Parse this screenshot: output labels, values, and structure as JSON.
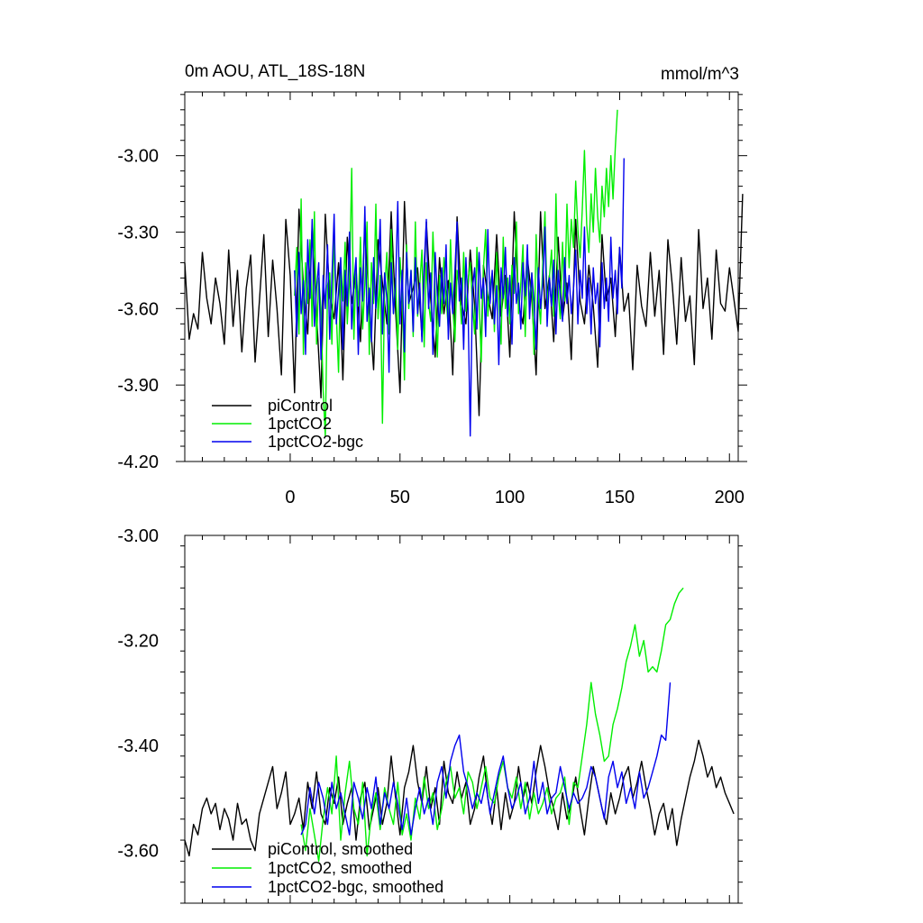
{
  "chart_data": [
    {
      "type": "line",
      "title": "0m AOU, ATL_18S-18N",
      "units": "mmol/m^3",
      "xlim": [
        -48,
        204
      ],
      "ylim": [
        -4.2,
        -2.75
      ],
      "x_ticks": [
        0,
        50,
        100,
        150,
        200
      ],
      "x_tick_labels": [
        "0",
        "50",
        "100",
        "150",
        "200"
      ],
      "y_ticks": [
        -4.2,
        -3.9,
        -3.6,
        -3.3,
        -3.0
      ],
      "y_tick_labels": [
        "-4.20",
        "-3.90",
        "-3.60",
        "-3.30",
        "-3.00"
      ],
      "legend_position": "bottom-left",
      "series": [
        {
          "name": "piControl",
          "color": "#000000",
          "x_start": -48,
          "x_step": 2,
          "values": [
            -3.42,
            -3.72,
            -3.62,
            -3.68,
            -3.38,
            -3.56,
            -3.66,
            -3.48,
            -3.58,
            -3.74,
            -3.37,
            -3.67,
            -3.45,
            -3.77,
            -3.52,
            -3.39,
            -3.81,
            -3.57,
            -3.31,
            -3.71,
            -3.41,
            -3.6,
            -3.86,
            -3.25,
            -3.47,
            -3.93,
            -3.21,
            -3.51,
            -3.7,
            -3.28,
            -3.62,
            -3.95,
            -3.23,
            -3.55,
            -3.64,
            -3.42,
            -3.88,
            -3.32,
            -3.58,
            -3.46,
            -3.73,
            -3.27,
            -3.59,
            -3.84,
            -3.33,
            -3.5,
            -3.66,
            -3.22,
            -3.61,
            -3.93,
            -3.18,
            -3.58,
            -3.52,
            -3.44,
            -3.71,
            -3.26,
            -3.57,
            -3.79,
            -3.4,
            -3.62,
            -3.49,
            -3.86,
            -3.24,
            -3.58,
            -3.66,
            -3.37,
            -3.59,
            -4.02,
            -3.43,
            -3.55,
            -3.64,
            -3.31,
            -3.63,
            -3.47,
            -3.79,
            -3.22,
            -3.58,
            -3.66,
            -3.4,
            -3.56,
            -3.86,
            -3.22,
            -3.6,
            -3.47,
            -3.73,
            -3.32,
            -3.64,
            -3.5,
            -3.8,
            -3.25,
            -3.57,
            -3.66,
            -3.43,
            -3.59,
            -3.83,
            -3.31,
            -3.57,
            -3.48,
            -3.71,
            -3.36,
            -3.61,
            -3.54,
            -3.84,
            -3.43,
            -3.59,
            -3.67,
            -3.38,
            -3.63,
            -3.45,
            -3.78,
            -3.33,
            -3.51,
            -3.74,
            -3.4,
            -3.65,
            -3.55,
            -3.82,
            -3.29,
            -3.6,
            -3.48,
            -3.72,
            -3.37,
            -3.58,
            -3.61,
            -3.44,
            -3.56,
            -3.69,
            -3.15
          ]
        },
        {
          "name": "1pctCO2",
          "color": "#00ee00",
          "x_start": 2,
          "x_step": 1,
          "values": [
            -3.55,
            -3.36,
            -3.7,
            -3.17,
            -3.78,
            -3.42,
            -3.58,
            -3.33,
            -3.67,
            -3.22,
            -3.74,
            -3.48,
            -3.6,
            -3.92,
            -4.1,
            -3.51,
            -3.46,
            -3.74,
            -3.3,
            -3.62,
            -3.85,
            -3.41,
            -3.57,
            -3.34,
            -3.66,
            -3.49,
            -3.05,
            -3.72,
            -3.44,
            -3.59,
            -3.32,
            -3.68,
            -3.5,
            -3.26,
            -3.78,
            -3.42,
            -3.58,
            -3.19,
            -3.64,
            -3.47,
            -4.05,
            -3.53,
            -3.38,
            -3.7,
            -3.29,
            -3.62,
            -3.48,
            -3.76,
            -3.4,
            -3.55,
            -3.88,
            -3.35,
            -3.6,
            -3.45,
            -3.71,
            -3.26,
            -3.63,
            -3.51,
            -3.37,
            -3.75,
            -3.42,
            -3.58,
            -3.65,
            -3.3,
            -3.53,
            -3.79,
            -3.47,
            -3.62,
            -3.4,
            -3.56,
            -3.68,
            -3.33,
            -3.59,
            -3.73,
            -3.45,
            -3.52,
            -3.66,
            -3.38,
            -3.61,
            -3.49,
            -3.42,
            -3.58,
            -3.7,
            -3.36,
            -3.55,
            -3.81,
            -3.44,
            -3.29,
            -3.63,
            -3.51,
            -3.46,
            -3.69,
            -3.38,
            -3.57,
            -3.74,
            -3.32,
            -3.6,
            -3.48,
            -3.66,
            -3.43,
            -3.54,
            -3.26,
            -3.62,
            -3.5,
            -3.35,
            -3.71,
            -3.41,
            -3.58,
            -3.46,
            -3.78,
            -3.31,
            -3.55,
            -3.66,
            -3.42,
            -3.22,
            -3.59,
            -3.48,
            -3.37,
            -3.63,
            -3.15,
            -3.53,
            -3.64,
            -3.34,
            -3.57,
            -3.19,
            -3.44,
            -3.25,
            -3.36,
            -3.1,
            -3.29,
            -3.4,
            -3.21,
            -2.98,
            -3.27,
            -3.38,
            -3.15,
            -3.3,
            -3.05,
            -3.24,
            -3.34,
            -3.12,
            -3.24,
            -3.05,
            -3.2,
            -3.0,
            -3.17,
            -2.97,
            -2.82
          ]
        },
        {
          "name": "1pctCO2-bgc",
          "color": "#0000ee",
          "x_start": 2,
          "x_step": 1,
          "values": [
            -3.45,
            -3.71,
            -3.38,
            -3.62,
            -3.49,
            -3.78,
            -3.33,
            -3.56,
            -3.25,
            -3.67,
            -3.52,
            -3.42,
            -3.8,
            -3.47,
            -3.6,
            -3.35,
            -3.72,
            -3.48,
            -3.23,
            -3.66,
            -3.53,
            -3.4,
            -3.76,
            -3.45,
            -3.59,
            -3.3,
            -3.68,
            -3.5,
            -3.4,
            -3.78,
            -3.44,
            -3.57,
            -3.2,
            -3.65,
            -3.52,
            -3.73,
            -3.4,
            -3.6,
            -3.48,
            -3.25,
            -3.7,
            -3.46,
            -3.56,
            -3.85,
            -3.42,
            -3.62,
            -3.5,
            -3.18,
            -3.66,
            -3.45,
            -3.77,
            -3.38,
            -3.58,
            -3.45,
            -3.69,
            -3.4,
            -3.62,
            -3.5,
            -3.73,
            -3.43,
            -3.25,
            -3.6,
            -3.46,
            -3.78,
            -3.38,
            -3.55,
            -3.67,
            -3.44,
            -3.58,
            -3.35,
            -3.72,
            -3.5,
            -3.62,
            -3.45,
            -3.26,
            -3.57,
            -3.48,
            -3.76,
            -3.4,
            -3.6,
            -4.1,
            -3.52,
            -3.44,
            -3.68,
            -3.38,
            -3.56,
            -3.48,
            -3.71,
            -3.29,
            -3.58,
            -3.45,
            -3.66,
            -3.51,
            -3.82,
            -3.44,
            -3.56,
            -3.36,
            -3.63,
            -3.47,
            -3.74,
            -3.4,
            -3.58,
            -3.5,
            -3.68,
            -3.42,
            -3.55,
            -3.35,
            -3.64,
            -3.46,
            -3.57,
            -3.76,
            -3.44,
            -3.6,
            -3.5,
            -3.28,
            -3.67,
            -3.48,
            -3.59,
            -3.41,
            -3.7,
            -3.45,
            -3.55,
            -3.65,
            -3.4,
            -3.58,
            -3.47,
            -3.62,
            -3.52,
            -3.37,
            -3.66,
            -3.45,
            -3.56,
            -3.28,
            -3.62,
            -3.48,
            -3.7,
            -3.44,
            -3.58,
            -3.5,
            -3.75,
            -3.42,
            -3.6,
            -3.48,
            -3.65,
            -3.32,
            -3.56,
            -3.45,
            -3.62,
            -3.36,
            -3.52,
            -3.01
          ]
        }
      ]
    },
    {
      "type": "line",
      "title": "",
      "xlim": [
        -48,
        204
      ],
      "ylim": [
        -3.7,
        -3.0
      ],
      "x_ticks": [
        0,
        50,
        100,
        150,
        200
      ],
      "y_ticks": [
        -3.6,
        -3.4,
        -3.2,
        -3.0
      ],
      "y_tick_labels": [
        "-3.60",
        "-3.40",
        "-3.20",
        "-3.00"
      ],
      "legend_position": "bottom-left",
      "series": [
        {
          "name": "piControl, smoothed",
          "color": "#000000",
          "x_start": -48,
          "x_step": 2,
          "values": [
            -3.58,
            -3.61,
            -3.55,
            -3.57,
            -3.52,
            -3.5,
            -3.53,
            -3.51,
            -3.56,
            -3.52,
            -3.54,
            -3.58,
            -3.51,
            -3.55,
            -3.54,
            -3.58,
            -3.6,
            -3.53,
            -3.5,
            -3.47,
            -3.44,
            -3.52,
            -3.49,
            -3.45,
            -3.55,
            -3.53,
            -3.5,
            -3.56,
            -3.47,
            -3.52,
            -3.45,
            -3.53,
            -3.55,
            -3.48,
            -3.51,
            -3.46,
            -3.55,
            -3.51,
            -3.48,
            -3.58,
            -3.5,
            -3.47,
            -3.56,
            -3.52,
            -3.48,
            -3.55,
            -3.51,
            -3.42,
            -3.5,
            -3.57,
            -3.48,
            -3.45,
            -3.4,
            -3.47,
            -3.51,
            -3.44,
            -3.52,
            -3.48,
            -3.55,
            -3.43,
            -3.49,
            -3.51,
            -3.45,
            -3.5,
            -3.47,
            -3.55,
            -3.52,
            -3.46,
            -3.42,
            -3.5,
            -3.55,
            -3.48,
            -3.56,
            -3.49,
            -3.54,
            -3.51,
            -3.44,
            -3.5,
            -3.47,
            -3.51,
            -3.45,
            -3.4,
            -3.44,
            -3.49,
            -3.52,
            -3.56,
            -3.49,
            -3.54,
            -3.51,
            -3.46,
            -3.52,
            -3.57,
            -3.5,
            -3.44,
            -3.48,
            -3.52,
            -3.55,
            -3.49,
            -3.53,
            -3.5,
            -3.46,
            -3.44,
            -3.5,
            -3.47,
            -3.43,
            -3.48,
            -3.52,
            -3.57,
            -3.53,
            -3.51,
            -3.56,
            -3.52,
            -3.59,
            -3.54,
            -3.5,
            -3.46,
            -3.43,
            -3.39,
            -3.42,
            -3.46,
            -3.44,
            -3.48,
            -3.46,
            -3.49,
            -3.51,
            -3.53
          ]
        },
        {
          "name": "1pctCO2, smoothed",
          "color": "#00ee00",
          "x_start": 5,
          "x_step": 2,
          "values": [
            -3.55,
            -3.6,
            -3.52,
            -3.57,
            -3.62,
            -3.54,
            -3.48,
            -3.53,
            -3.42,
            -3.58,
            -3.49,
            -3.43,
            -3.52,
            -3.55,
            -3.47,
            -3.61,
            -3.53,
            -3.49,
            -3.56,
            -3.48,
            -3.52,
            -3.55,
            -3.47,
            -3.57,
            -3.53,
            -3.58,
            -3.5,
            -3.54,
            -3.46,
            -3.52,
            -3.49,
            -3.56,
            -3.52,
            -3.47,
            -3.44,
            -3.5,
            -3.48,
            -3.53,
            -3.45,
            -3.47,
            -3.52,
            -3.48,
            -3.44,
            -3.5,
            -3.51,
            -3.46,
            -3.43,
            -3.48,
            -3.5,
            -3.46,
            -3.52,
            -3.47,
            -3.54,
            -3.49,
            -3.53,
            -3.51,
            -3.48,
            -3.53,
            -3.5,
            -3.49,
            -3.46,
            -3.55,
            -3.47,
            -3.48,
            -3.42,
            -3.36,
            -3.28,
            -3.34,
            -3.38,
            -3.43,
            -3.42,
            -3.36,
            -3.33,
            -3.29,
            -3.24,
            -3.21,
            -3.17,
            -3.23,
            -3.2,
            -3.26,
            -3.25,
            -3.26,
            -3.22,
            -3.17,
            -3.16,
            -3.13,
            -3.11,
            -3.1
          ]
        },
        {
          "name": "1pctCO2-bgc, smoothed",
          "color": "#0000ee",
          "x_start": 5,
          "x_step": 2,
          "values": [
            -3.57,
            -3.55,
            -3.48,
            -3.53,
            -3.47,
            -3.5,
            -3.55,
            -3.47,
            -3.52,
            -3.49,
            -3.53,
            -3.57,
            -3.47,
            -3.5,
            -3.54,
            -3.48,
            -3.52,
            -3.46,
            -3.55,
            -3.49,
            -3.52,
            -3.47,
            -3.51,
            -3.56,
            -3.5,
            -3.57,
            -3.52,
            -3.48,
            -3.53,
            -3.5,
            -3.55,
            -3.47,
            -3.44,
            -3.5,
            -3.43,
            -3.4,
            -3.38,
            -3.45,
            -3.48,
            -3.52,
            -3.49,
            -3.51,
            -3.47,
            -3.53,
            -3.49,
            -3.45,
            -3.42,
            -3.48,
            -3.52,
            -3.5,
            -3.47,
            -3.53,
            -3.5,
            -3.43,
            -3.51,
            -3.47,
            -3.53,
            -3.5,
            -3.49,
            -3.44,
            -3.48,
            -3.52,
            -3.49,
            -3.51,
            -3.5,
            -3.48,
            -3.44,
            -3.46,
            -3.5,
            -3.54,
            -3.46,
            -3.43,
            -3.48,
            -3.45,
            -3.51,
            -3.48,
            -3.52,
            -3.45,
            -3.5,
            -3.48,
            -3.45,
            -3.42,
            -3.38,
            -3.39,
            -3.28
          ]
        }
      ]
    }
  ]
}
